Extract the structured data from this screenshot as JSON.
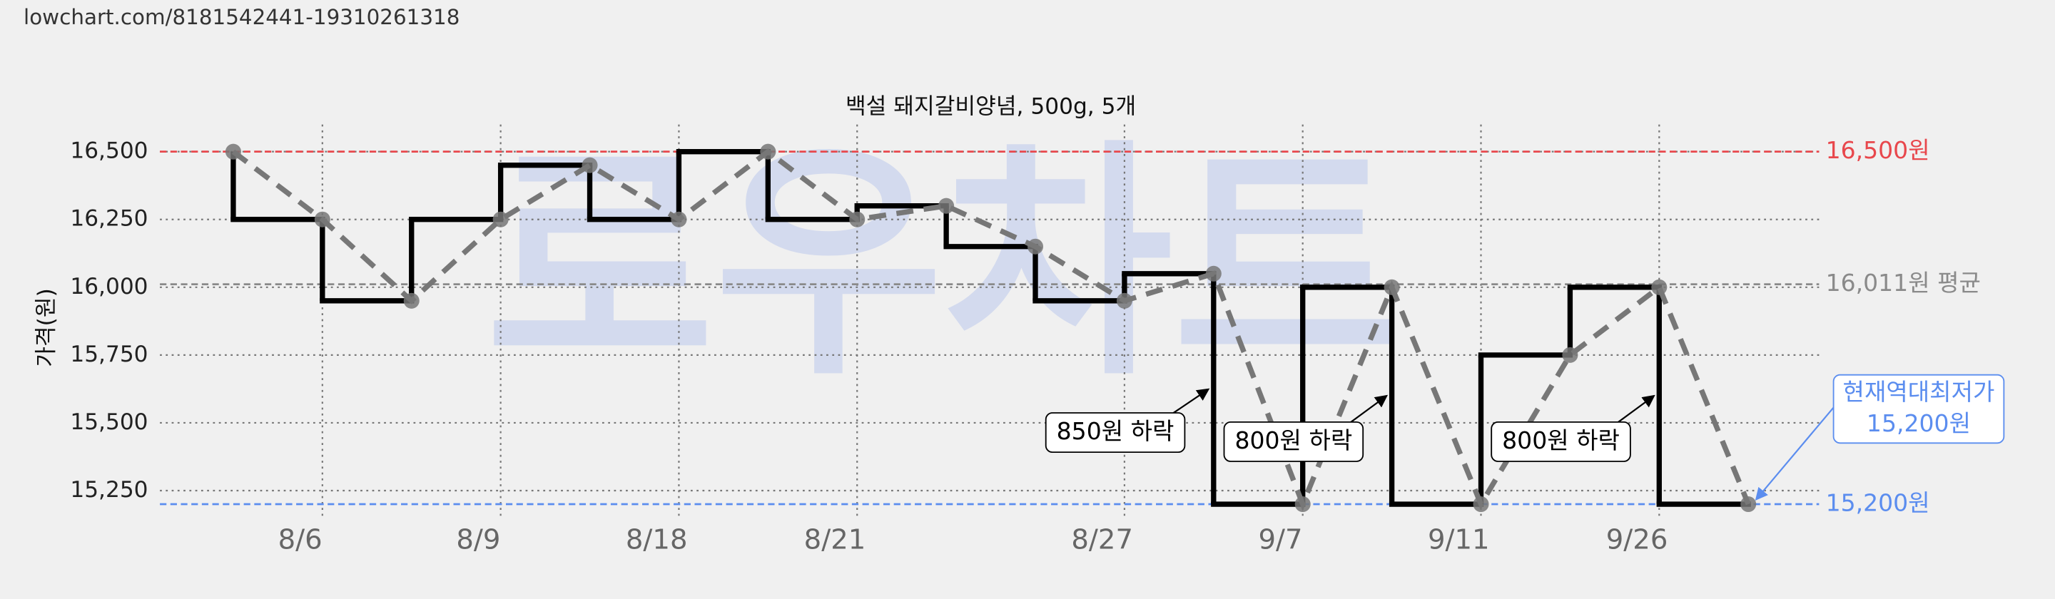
{
  "header": {
    "url": "lowchart.com/8181542441-19310261318"
  },
  "chart_data": {
    "type": "line",
    "title": "백설 돼지갈비양념, 500g, 5개",
    "y_label": "가격(원)",
    "watermark": "로우차트",
    "categories": [
      null,
      "8/6",
      null,
      "8/9",
      null,
      "8/18",
      null,
      "8/21",
      null,
      null,
      "8/27",
      null,
      "9/7",
      null,
      "9/11",
      null,
      "9/26",
      null
    ],
    "series": [
      {
        "color": "#000000",
        "values": [
          16500,
          16250,
          15950,
          16250,
          16450,
          16250,
          16500,
          16250,
          16300,
          16150,
          15950,
          16050,
          15200,
          16000,
          15200,
          15750,
          16000,
          15200
        ]
      }
    ],
    "ylim": [
      15150,
      16600
    ],
    "yticks": [
      {
        "value": 15250,
        "label": "15,250"
      },
      {
        "value": 15500,
        "label": "15,500"
      },
      {
        "value": 15750,
        "label": "15,750"
      },
      {
        "value": 16000,
        "label": "16,000"
      },
      {
        "value": 16250,
        "label": "16,250"
      },
      {
        "value": 16500,
        "label": "16,500"
      }
    ],
    "grid": true,
    "reference_lines": [
      {
        "value": 16500,
        "label": "16,500원",
        "color": "#e8474c"
      },
      {
        "value": 16011,
        "label": "16,011원 평균",
        "color": "#8a8a8a"
      },
      {
        "value": 15200,
        "label": "15,200원",
        "color": "#5b8def"
      }
    ],
    "annotations": [
      {
        "text": "850원 하락"
      },
      {
        "text": "800원 하락"
      },
      {
        "text": "800원 하락"
      },
      {
        "text": [
          "현재역대최저가",
          "15,200원"
        ]
      }
    ]
  }
}
